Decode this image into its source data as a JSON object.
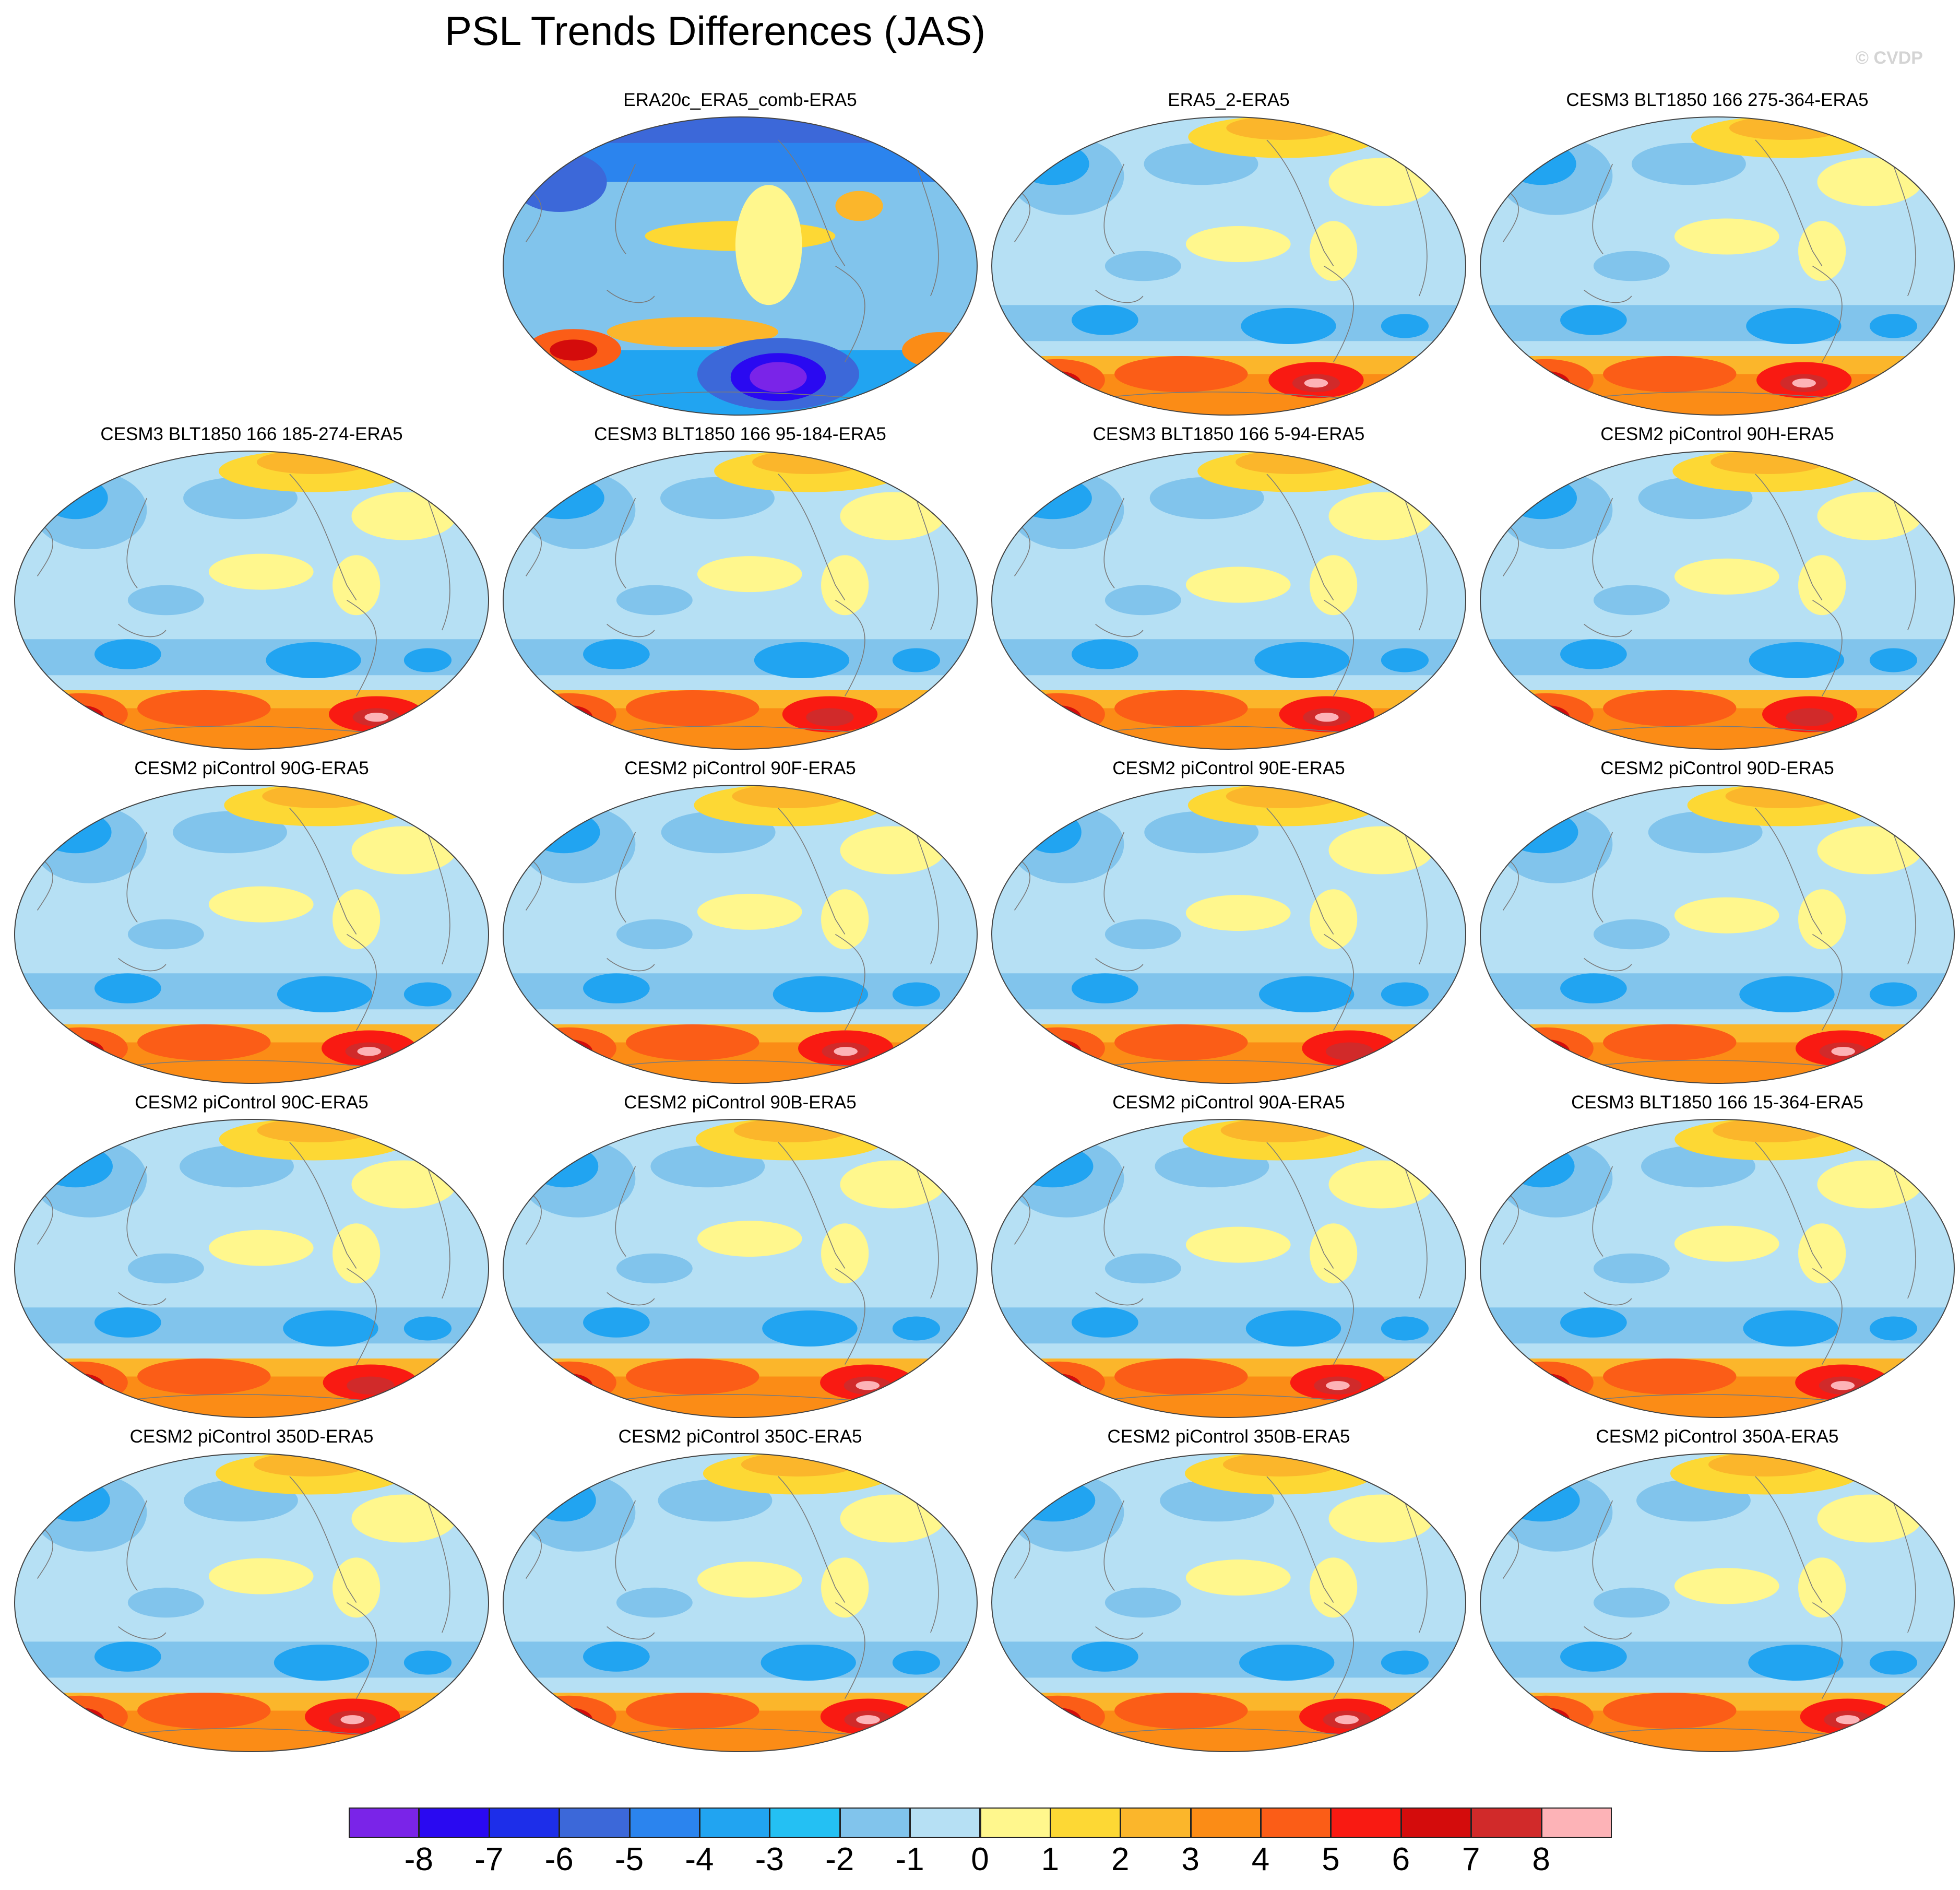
{
  "title": "PSL Trends Differences (JAS)",
  "watermark": "© CVDP",
  "palette": [
    "#7a24e8",
    "#2a09f1",
    "#1d2ee9",
    "#3c68d9",
    "#2b84ee",
    "#21a4f1",
    "#24c0f3",
    "#81c4ec",
    "#b6e0f4",
    "#fff78d",
    "#fdd834",
    "#fbb62b",
    "#fb8c16",
    "#fb5d17",
    "#f91a12",
    "#d40c0c",
    "#d12a2a",
    "#fdb3b7"
  ],
  "colorbar": {
    "levels": [
      "-8",
      "-7",
      "-6",
      "-5",
      "-4",
      "-3",
      "-2",
      "-1",
      "0",
      "1",
      "2",
      "3",
      "4",
      "5",
      "6",
      "7",
      "8"
    ]
  },
  "panels": [
    {
      "title": "ERA20c_ERA5_comb-ERA5",
      "pattern": "era20c"
    },
    {
      "title": "ERA5_2-ERA5",
      "pattern": "era5"
    },
    {
      "title": "CESM3 BLT1850 166 275-364-ERA5",
      "pattern": "model"
    },
    {
      "title": "CESM3 BLT1850 166 185-274-ERA5",
      "pattern": "model"
    },
    {
      "title": "CESM3 BLT1850 166 95-184-ERA5",
      "pattern": "model"
    },
    {
      "title": "CESM3 BLT1850 166 5-94-ERA5",
      "pattern": "model"
    },
    {
      "title": "CESM2 piControl 90H-ERA5",
      "pattern": "model"
    },
    {
      "title": "CESM2 piControl 90G-ERA5",
      "pattern": "model"
    },
    {
      "title": "CESM2 piControl 90F-ERA5",
      "pattern": "model"
    },
    {
      "title": "CESM2 piControl 90E-ERA5",
      "pattern": "model"
    },
    {
      "title": "CESM2 piControl 90D-ERA5",
      "pattern": "model"
    },
    {
      "title": "CESM2 piControl 90C-ERA5",
      "pattern": "model"
    },
    {
      "title": "CESM2 piControl 90B-ERA5",
      "pattern": "model"
    },
    {
      "title": "CESM2 piControl 90A-ERA5",
      "pattern": "model"
    },
    {
      "title": "CESM3 BLT1850 166 15-364-ERA5",
      "pattern": "model"
    },
    {
      "title": "CESM2 piControl 350D-ERA5",
      "pattern": "model"
    },
    {
      "title": "CESM2 piControl 350C-ERA5",
      "pattern": "model"
    },
    {
      "title": "CESM2 piControl 350B-ERA5",
      "pattern": "model"
    },
    {
      "title": "CESM2 piControl 350A-ERA5",
      "pattern": "model"
    }
  ]
}
